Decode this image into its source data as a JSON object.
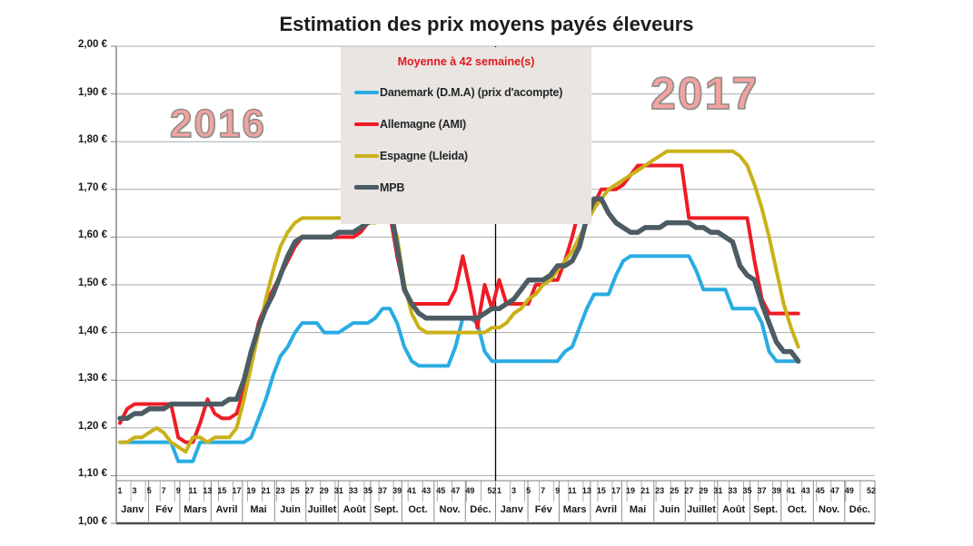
{
  "title": "Estimation des prix moyens payés éleveurs",
  "watermarks": {
    "left_year": "2016",
    "right_year": "2017"
  },
  "legend": {
    "title": "Moyenne à  42 semaine(s)",
    "items": [
      {
        "label": "Danemark (D.M.A) (prix d'acompte)"
      },
      {
        "label": "Allemagne (AMI)"
      },
      {
        "label": "Espagne (Lleida)"
      },
      {
        "label": "MPB"
      }
    ]
  },
  "colors": {
    "legend_title": "#e0181e",
    "legend_background": "#e8e5e2",
    "year_watermark_fill": "#f3a2a2",
    "year_watermark_outline": "#8f8f87",
    "gridline": "#ababab",
    "axis": "#7f7f7f",
    "bottom_border": "#4d4d4d",
    "year_separator": "#000000"
  },
  "chart_data": {
    "type": "line",
    "title": "Estimation des prix moyens payés éleveurs",
    "legend_position": "top-center",
    "grid": true,
    "y_axis": {
      "min": 1.0,
      "max": 2.0,
      "step": 0.1,
      "unit": "€",
      "tick_labels": [
        "2,00 €",
        "1,90 €",
        "1,80 €",
        "1,70 €",
        "1,60 €",
        "1,50 €",
        "1,40 €",
        "1,30 €",
        "1,20 €",
        "1,10 €",
        "1,00 €"
      ]
    },
    "x_axis": {
      "years": [
        "2016",
        "2017"
      ],
      "weeks_with_data_2016": 52,
      "weeks_with_data_2017": 42,
      "week_tick_labels": [
        1,
        3,
        5,
        7,
        9,
        11,
        13,
        15,
        17,
        19,
        21,
        23,
        25,
        27,
        29,
        31,
        33,
        35,
        37,
        39,
        41,
        43,
        45,
        47,
        49,
        52
      ],
      "month_labels": [
        "Janv",
        "Fév",
        "Mars",
        "Avril",
        "Mai",
        "Juin",
        "Juillet",
        "Août",
        "Sept.",
        "Oct.",
        "Nov.",
        "Déc."
      ]
    },
    "series": [
      {
        "name": "Danemark (D.M.A) (prix d'acompte)",
        "slug": "danemark",
        "color": "#29ace3",
        "stroke_width": 4,
        "values_2016": [
          1.17,
          1.17,
          1.17,
          1.17,
          1.17,
          1.17,
          1.17,
          1.17,
          1.13,
          1.13,
          1.13,
          1.17,
          1.17,
          1.17,
          1.17,
          1.17,
          1.17,
          1.17,
          1.18,
          1.22,
          1.26,
          1.31,
          1.35,
          1.37,
          1.4,
          1.42,
          1.42,
          1.42,
          1.4,
          1.4,
          1.4,
          1.41,
          1.42,
          1.42,
          1.42,
          1.43,
          1.45,
          1.45,
          1.42,
          1.37,
          1.34,
          1.33,
          1.33,
          1.33,
          1.33,
          1.33,
          1.37,
          1.43,
          1.43,
          1.42,
          1.36,
          1.34
        ],
        "values_2017": [
          1.34,
          1.34,
          1.34,
          1.34,
          1.34,
          1.34,
          1.34,
          1.34,
          1.34,
          1.36,
          1.37,
          1.41,
          1.45,
          1.48,
          1.48,
          1.48,
          1.52,
          1.55,
          1.56,
          1.56,
          1.56,
          1.56,
          1.56,
          1.56,
          1.56,
          1.56,
          1.56,
          1.53,
          1.49,
          1.49,
          1.49,
          1.49,
          1.45,
          1.45,
          1.45,
          1.45,
          1.42,
          1.36,
          1.34,
          1.34,
          1.34,
          1.34
        ]
      },
      {
        "name": "Allemagne (AMI)",
        "slug": "allemagne",
        "color": "#ee1c25",
        "stroke_width": 4,
        "values_2016": [
          1.21,
          1.24,
          1.25,
          1.25,
          1.25,
          1.25,
          1.25,
          1.25,
          1.18,
          1.17,
          1.17,
          1.21,
          1.26,
          1.23,
          1.22,
          1.22,
          1.23,
          1.28,
          1.35,
          1.42,
          1.46,
          1.49,
          1.52,
          1.55,
          1.58,
          1.6,
          1.6,
          1.6,
          1.6,
          1.6,
          1.6,
          1.6,
          1.6,
          1.61,
          1.63,
          1.65,
          1.66,
          1.65,
          1.56,
          1.49,
          1.46,
          1.46,
          1.46,
          1.46,
          1.46,
          1.46,
          1.49,
          1.56,
          1.49,
          1.41,
          1.5,
          1.45
        ],
        "values_2017": [
          1.51,
          1.46,
          1.46,
          1.46,
          1.46,
          1.5,
          1.5,
          1.51,
          1.51,
          1.55,
          1.6,
          1.66,
          1.67,
          1.67,
          1.7,
          1.7,
          1.7,
          1.71,
          1.73,
          1.75,
          1.75,
          1.75,
          1.75,
          1.75,
          1.75,
          1.75,
          1.64,
          1.64,
          1.64,
          1.64,
          1.64,
          1.64,
          1.64,
          1.64,
          1.64,
          1.55,
          1.47,
          1.44,
          1.44,
          1.44,
          1.44,
          1.44
        ]
      },
      {
        "name": "Espagne (Lleida)",
        "slug": "espagne",
        "color": "#c9b118",
        "stroke_width": 4,
        "values_2016": [
          1.17,
          1.17,
          1.18,
          1.18,
          1.19,
          1.2,
          1.19,
          1.17,
          1.16,
          1.15,
          1.18,
          1.18,
          1.17,
          1.18,
          1.18,
          1.18,
          1.2,
          1.26,
          1.33,
          1.4,
          1.47,
          1.53,
          1.58,
          1.61,
          1.63,
          1.64,
          1.64,
          1.64,
          1.64,
          1.64,
          1.64,
          1.64,
          1.64,
          1.64,
          1.63,
          1.63,
          1.64,
          1.65,
          1.6,
          1.5,
          1.44,
          1.41,
          1.4,
          1.4,
          1.4,
          1.4,
          1.4,
          1.4,
          1.4,
          1.4,
          1.4,
          1.41
        ],
        "values_2017": [
          1.41,
          1.42,
          1.44,
          1.45,
          1.47,
          1.48,
          1.5,
          1.51,
          1.53,
          1.55,
          1.57,
          1.6,
          1.63,
          1.66,
          1.68,
          1.7,
          1.71,
          1.72,
          1.73,
          1.74,
          1.75,
          1.76,
          1.77,
          1.78,
          1.78,
          1.78,
          1.78,
          1.78,
          1.78,
          1.78,
          1.78,
          1.78,
          1.78,
          1.77,
          1.75,
          1.71,
          1.66,
          1.6,
          1.53,
          1.46,
          1.41,
          1.37
        ]
      },
      {
        "name": "MPB",
        "slug": "mpb",
        "color": "#4d5c63",
        "stroke_width": 5.5,
        "values_2016": [
          1.22,
          1.22,
          1.23,
          1.23,
          1.24,
          1.24,
          1.24,
          1.25,
          1.25,
          1.25,
          1.25,
          1.25,
          1.25,
          1.25,
          1.25,
          1.26,
          1.26,
          1.3,
          1.36,
          1.41,
          1.45,
          1.48,
          1.52,
          1.56,
          1.59,
          1.6,
          1.6,
          1.6,
          1.6,
          1.6,
          1.61,
          1.61,
          1.61,
          1.62,
          1.63,
          1.64,
          1.67,
          1.67,
          1.58,
          1.49,
          1.46,
          1.44,
          1.43,
          1.43,
          1.43,
          1.43,
          1.43,
          1.43,
          1.43,
          1.43,
          1.44,
          1.45
        ],
        "values_2017": [
          1.45,
          1.46,
          1.47,
          1.49,
          1.51,
          1.51,
          1.51,
          1.52,
          1.54,
          1.54,
          1.55,
          1.58,
          1.64,
          1.68,
          1.68,
          1.65,
          1.63,
          1.62,
          1.61,
          1.61,
          1.62,
          1.62,
          1.62,
          1.63,
          1.63,
          1.63,
          1.63,
          1.62,
          1.62,
          1.61,
          1.61,
          1.6,
          1.59,
          1.54,
          1.52,
          1.51,
          1.46,
          1.42,
          1.38,
          1.36,
          1.36,
          1.34
        ]
      }
    ]
  }
}
